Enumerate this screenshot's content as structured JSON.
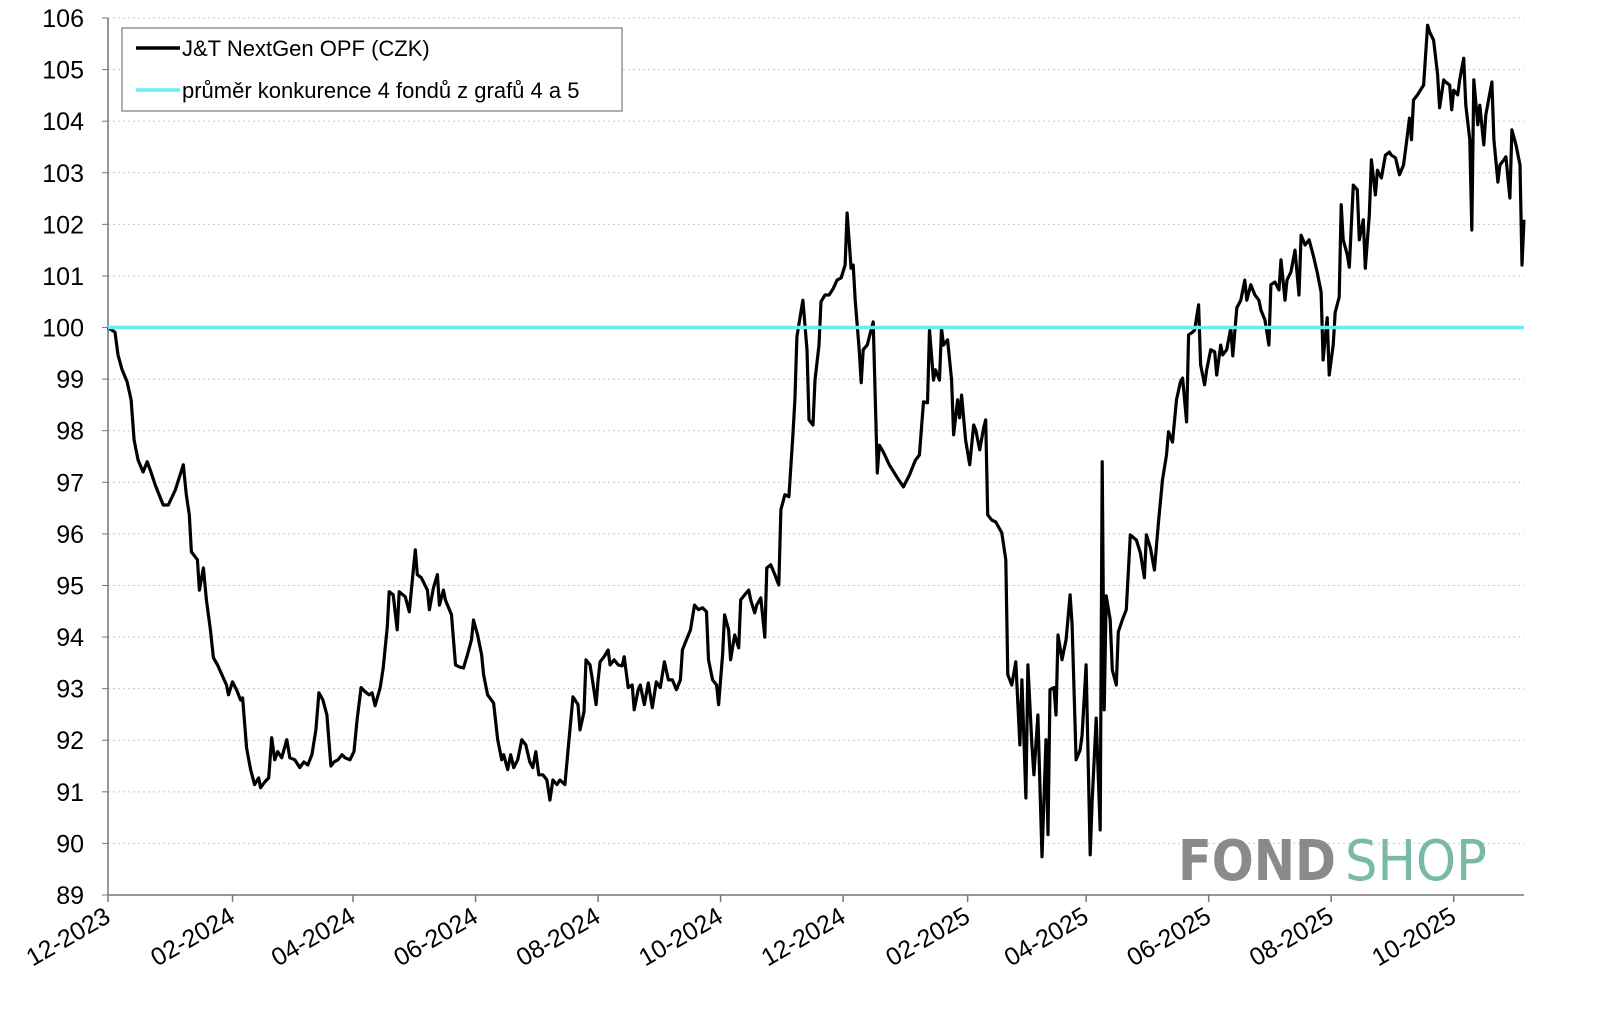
{
  "chart_data": {
    "type": "line",
    "title": "",
    "xlabel": "",
    "ylabel": "",
    "x_unit": "days since 12-2023",
    "xlim": [
      0,
      705
    ],
    "ylim": [
      89,
      106
    ],
    "yticks": [
      89,
      90,
      91,
      92,
      93,
      94,
      95,
      96,
      97,
      98,
      99,
      100,
      101,
      102,
      103,
      104,
      105,
      106
    ],
    "xticks": [
      {
        "day": 0,
        "label": "12-2023"
      },
      {
        "day": 62,
        "label": "02-2024"
      },
      {
        "day": 122,
        "label": "04-2024"
      },
      {
        "day": 183,
        "label": "06-2024"
      },
      {
        "day": 244,
        "label": "08-2024"
      },
      {
        "day": 305,
        "label": "10-2024"
      },
      {
        "day": 366,
        "label": "12-2024"
      },
      {
        "day": 428,
        "label": "02-2025"
      },
      {
        "day": 487,
        "label": "04-2025"
      },
      {
        "day": 548,
        "label": "06-2025"
      },
      {
        "day": 609,
        "label": "08-2025"
      },
      {
        "day": 670,
        "label": "10-2025"
      }
    ],
    "grid": "horizontal-dotted",
    "legend_placement": "top-left",
    "series": [
      {
        "name": "J&T NextGen OPF (CZK)",
        "color": "#000000",
        "x": [
          0,
          3.5,
          5,
          7,
          9.5,
          11.5,
          13,
          15,
          17.5,
          19.5,
          21,
          23.5,
          27.5,
          30,
          33.5,
          37.5,
          39,
          40.5,
          41.5,
          44.5,
          45.5,
          47.5,
          49,
          51,
          52.5,
          54.5,
          56,
          59,
          60,
          62,
          64,
          66,
          67,
          69,
          71,
          73,
          75,
          76,
          78,
          80,
          81.5,
          83,
          84.5,
          86.5,
          89,
          90.5,
          93,
          95.5,
          97.5,
          99.5,
          101.5,
          103.5,
          105,
          107,
          109,
          111,
          112.5,
          114.5,
          116.5,
          118,
          120.5,
          122.5,
          124,
          126,
          128,
          130,
          131.5,
          133,
          135.5,
          137,
          139,
          140,
          142,
          144,
          145,
          148,
          150,
          152,
          153,
          154,
          156,
          159,
          160,
          162,
          164,
          165,
          167,
          168,
          171,
          173,
          175,
          177,
          179,
          181,
          182,
          184,
          186,
          187,
          189,
          192,
          194,
          196,
          197,
          199,
          200.5,
          202,
          204,
          206,
          208,
          210,
          211.5,
          213,
          214.5,
          216.5,
          218.5,
          220,
          221.5,
          223.5,
          225,
          227.5,
          229.5,
          231.5,
          234,
          235,
          237,
          238,
          240,
          241,
          243,
          244,
          245,
          247,
          249,
          250,
          252,
          254,
          256,
          257,
          259,
          261,
          262,
          264,
          265,
          267,
          269,
          271,
          273,
          275,
          277,
          279,
          281,
          283,
          285,
          286,
          288,
          290,
          292,
          294,
          296,
          298,
          299,
          301,
          303,
          304,
          306,
          307,
          309,
          310,
          312,
          314,
          315,
          317,
          319,
          320,
          322,
          323,
          325,
          327,
          328,
          330,
          332,
          334,
          335,
          337,
          339,
          341,
          342,
          343,
          345,
          346,
          348,
          349,
          351,
          352,
          354,
          355,
          357,
          359,
          361,
          363,
          365,
          367,
          368,
          370,
          371,
          372,
          374,
          375,
          376,
          378,
          381,
          382,
          383,
          384,
          386,
          389,
          393,
          396,
          399,
          402,
          404,
          406,
          408,
          409,
          411,
          412,
          414,
          415,
          416,
          418,
          420,
          421,
          423,
          424,
          425,
          427,
          429,
          431,
          432,
          434,
          436,
          437,
          438,
          440,
          442,
          445,
          447,
          448,
          450,
          452,
          454,
          455,
          457,
          458,
          460,
          461,
          463,
          465,
          467,
          468,
          469,
          471,
          472,
          473,
          475,
          477,
          479,
          480,
          482,
          484,
          485,
          487,
          489,
          490,
          492,
          494,
          495,
          496,
          497,
          499,
          500,
          502,
          503,
          505,
          507,
          509,
          512,
          514,
          516,
          517,
          519,
          521,
          523,
          525,
          527,
          528,
          530,
          532,
          534,
          535,
          537,
          538,
          540,
          541,
          543,
          544,
          546,
          547,
          549,
          551,
          552,
          554,
          555,
          557,
          559,
          560,
          562,
          564,
          566,
          567,
          569,
          571,
          573,
          574,
          576,
          578,
          579,
          581,
          583,
          584,
          586,
          587,
          589,
          591,
          593,
          594,
          596,
          598,
          600,
          602,
          604,
          605,
          607,
          608,
          610,
          611,
          613,
          614,
          615,
          617,
          618,
          620,
          622,
          623,
          625,
          626,
          628,
          629,
          631,
          632,
          634,
          636,
          638,
          639,
          641,
          643,
          645,
          646,
          648,
          649,
          650,
          652,
          654,
          655,
          657,
          658,
          660,
          662,
          663,
          665,
          666,
          668,
          669,
          670,
          672,
          673,
          675,
          676,
          678,
          679,
          680,
          682,
          683,
          685,
          686,
          689,
          690,
          692,
          693,
          695,
          696,
          698,
          699,
          701,
          703,
          704,
          705
        ],
        "values": [
          100.0,
          99.91,
          99.47,
          99.18,
          98.95,
          98.6,
          97.82,
          97.43,
          97.2,
          97.4,
          97.24,
          96.95,
          96.56,
          96.56,
          96.85,
          97.34,
          96.76,
          96.37,
          95.65,
          95.5,
          94.91,
          95.34,
          94.72,
          94.14,
          93.6,
          93.46,
          93.33,
          93.07,
          92.88,
          93.13,
          92.98,
          92.78,
          92.82,
          91.85,
          91.43,
          91.14,
          91.27,
          91.08,
          91.19,
          91.27,
          92.05,
          91.62,
          91.78,
          91.66,
          92.01,
          91.66,
          91.62,
          91.47,
          91.58,
          91.52,
          91.72,
          92.2,
          92.92,
          92.78,
          92.49,
          91.5,
          91.58,
          91.62,
          91.72,
          91.66,
          91.62,
          91.78,
          92.4,
          93.02,
          92.94,
          92.88,
          92.92,
          92.67,
          93.02,
          93.4,
          94.18,
          94.88,
          94.82,
          94.14,
          94.88,
          94.78,
          94.49,
          95.3,
          95.69,
          95.21,
          95.15,
          94.91,
          94.53,
          94.95,
          95.21,
          94.62,
          94.91,
          94.72,
          94.43,
          93.46,
          93.42,
          93.4,
          93.66,
          93.95,
          94.33,
          94.04,
          93.66,
          93.27,
          92.88,
          92.72,
          92.01,
          91.62,
          91.72,
          91.43,
          91.72,
          91.47,
          91.62,
          92.01,
          91.91,
          91.58,
          91.47,
          91.78,
          91.33,
          91.33,
          91.23,
          90.84,
          91.23,
          91.14,
          91.23,
          91.14,
          92.01,
          92.84,
          92.69,
          92.2,
          92.55,
          93.56,
          93.46,
          93.21,
          92.69,
          93.17,
          93.52,
          93.62,
          93.75,
          93.46,
          93.56,
          93.46,
          93.44,
          93.62,
          93.02,
          93.07,
          92.59,
          92.98,
          93.07,
          92.69,
          93.11,
          92.63,
          93.13,
          93.02,
          93.52,
          93.17,
          93.17,
          92.98,
          93.17,
          93.75,
          93.95,
          94.14,
          94.62,
          94.53,
          94.57,
          94.49,
          93.56,
          93.17,
          93.07,
          92.69,
          93.66,
          94.43,
          94.14,
          93.56,
          94.04,
          93.79,
          94.72,
          94.82,
          94.91,
          94.72,
          94.47,
          94.62,
          94.76,
          94.0,
          95.34,
          95.4,
          95.21,
          95.01,
          96.47,
          96.76,
          96.72,
          97.92,
          98.6,
          99.82,
          100.3,
          100.53,
          99.57,
          98.21,
          98.11,
          98.98,
          99.66,
          100.5,
          100.63,
          100.63,
          100.75,
          100.92,
          100.96,
          101.21,
          102.22,
          101.15,
          101.21,
          100.53,
          99.57,
          98.93,
          99.57,
          99.66,
          100.11,
          98.6,
          97.18,
          97.72,
          97.59,
          97.34,
          97.09,
          96.91,
          97.14,
          97.43,
          97.53,
          98.56,
          98.54,
          99.95,
          98.98,
          99.18,
          98.98,
          99.99,
          99.66,
          99.76,
          98.98,
          97.92,
          98.6,
          98.25,
          98.69,
          97.82,
          97.34,
          98.11,
          98.02,
          97.63,
          98.06,
          98.21,
          96.37,
          96.27,
          96.23,
          96.02,
          95.5,
          93.27,
          93.07,
          93.52,
          91.91,
          93.17,
          90.88,
          93.46,
          91.91,
          91.33,
          92.49,
          89.74,
          92.01,
          90.17,
          92.98,
          93.02,
          92.49,
          94.04,
          93.56,
          93.95,
          94.82,
          94.24,
          91.62,
          91.81,
          92.1,
          93.46,
          89.78,
          90.84,
          92.43,
          90.26,
          97.4,
          92.59,
          94.8,
          94.33,
          93.36,
          93.07,
          94.1,
          94.33,
          94.53,
          95.98,
          95.88,
          95.63,
          95.15,
          95.98,
          95.73,
          95.3,
          96.23,
          97.05,
          97.53,
          97.98,
          97.78,
          98.6,
          98.95,
          99.02,
          98.17,
          99.86,
          99.91,
          99.95,
          100.44,
          99.28,
          98.89,
          99.18,
          99.57,
          99.53,
          99.08,
          99.66,
          99.47,
          99.57,
          99.99,
          99.45,
          100.38,
          100.53,
          100.92,
          100.53,
          100.83,
          100.63,
          100.53,
          100.34,
          100.15,
          99.66,
          100.83,
          100.88,
          100.73,
          101.31,
          100.53,
          100.92,
          101.08,
          101.5,
          100.63,
          101.79,
          101.6,
          101.7,
          101.41,
          101.08,
          100.69,
          99.37,
          100.19,
          99.08,
          99.66,
          100.3,
          100.59,
          102.38,
          101.7,
          101.41,
          101.17,
          102.76,
          102.67,
          101.7,
          102.09,
          101.15,
          102.18,
          103.25,
          102.57,
          103.05,
          102.9,
          103.34,
          103.4,
          103.34,
          103.29,
          102.96,
          103.15,
          103.44,
          104.06,
          103.64,
          104.41,
          104.51,
          104.64,
          104.7,
          105.86,
          105.73,
          105.57,
          104.9,
          104.26,
          104.8,
          104.76,
          104.7,
          104.22,
          104.6,
          104.51,
          104.8,
          105.22,
          104.31,
          103.64,
          101.89,
          104.8,
          103.93,
          104.31,
          103.54,
          104.12,
          104.76,
          103.64,
          102.82,
          103.15,
          103.25,
          103.31,
          102.51,
          103.83,
          103.54,
          103.15,
          101.21,
          102.09
        ]
      },
      {
        "name": "průměr konkurence 4 fondů z grafů 4 a 5",
        "color": "#66eef0",
        "x": [
          0,
          705
        ],
        "values": [
          100,
          100
        ]
      }
    ]
  },
  "logo": {
    "part1": "FOND",
    "part2": "SHOP",
    "color1": "#8a8a8a",
    "color2": "#7ab8a9"
  }
}
